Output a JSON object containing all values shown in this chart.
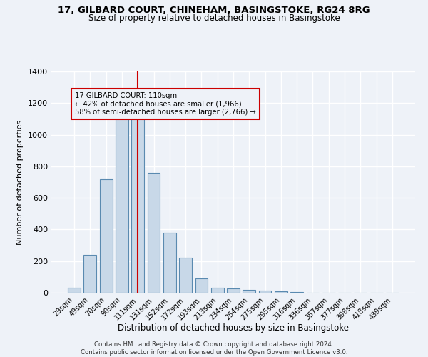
{
  "title1": "17, GILBARD COURT, CHINEHAM, BASINGSTOKE, RG24 8RG",
  "title2": "Size of property relative to detached houses in Basingstoke",
  "xlabel": "Distribution of detached houses by size in Basingstoke",
  "ylabel": "Number of detached properties",
  "annotation_line1": "17 GILBARD COURT: 110sqm",
  "annotation_line2": "← 42% of detached houses are smaller (1,966)",
  "annotation_line3": "58% of semi-detached houses are larger (2,766) →",
  "bar_labels": [
    "29sqm",
    "49sqm",
    "70sqm",
    "90sqm",
    "111sqm",
    "131sqm",
    "152sqm",
    "172sqm",
    "193sqm",
    "213sqm",
    "234sqm",
    "254sqm",
    "275sqm",
    "295sqm",
    "316sqm",
    "336sqm",
    "357sqm",
    "377sqm",
    "398sqm",
    "418sqm",
    "439sqm"
  ],
  "bar_values": [
    30,
    240,
    720,
    1100,
    1120,
    760,
    380,
    220,
    90,
    30,
    25,
    20,
    15,
    10,
    5,
    2,
    0,
    0,
    0,
    0,
    0
  ],
  "bar_color": "#c8d8e8",
  "bar_edge_color": "#5a8ab0",
  "bar_width": 0.8,
  "vline_x": 4.0,
  "vline_color": "#cc0000",
  "ylim": [
    0,
    1400
  ],
  "yticks": [
    0,
    200,
    400,
    600,
    800,
    1000,
    1200,
    1400
  ],
  "bg_color": "#eef2f8",
  "grid_color": "#ffffff",
  "footer1": "Contains HM Land Registry data © Crown copyright and database right 2024.",
  "footer2": "Contains public sector information licensed under the Open Government Licence v3.0."
}
